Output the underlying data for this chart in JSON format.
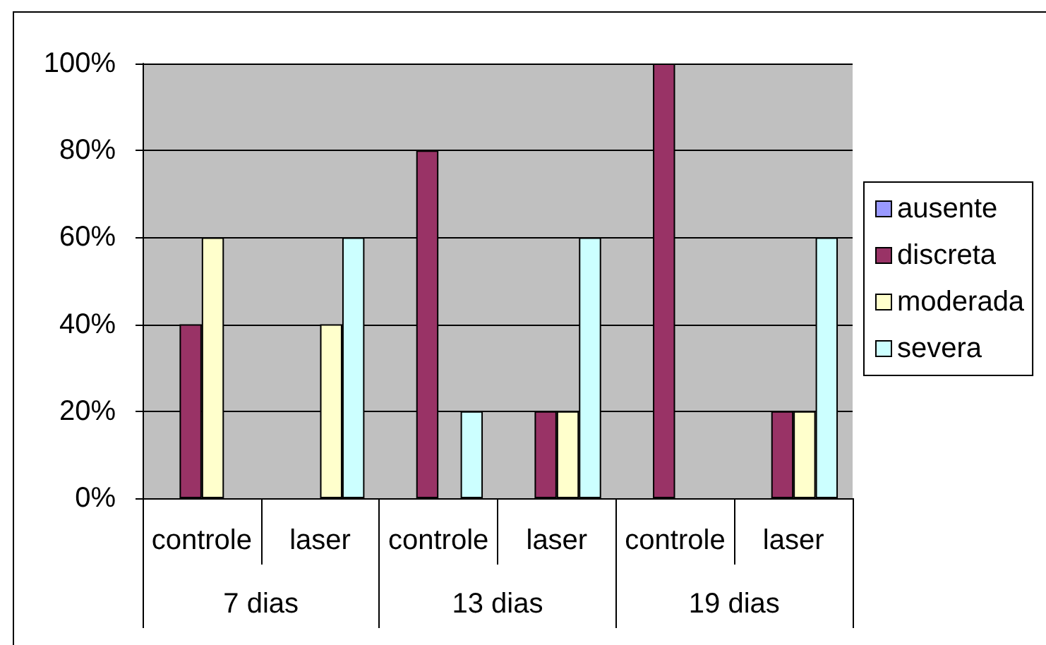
{
  "chart_data": {
    "type": "bar",
    "categories": [
      "controle",
      "laser",
      "controle",
      "laser",
      "controle",
      "laser"
    ],
    "annotations": [
      "7 dias",
      "13 dias",
      "19 dias"
    ],
    "series": [
      {
        "name": "ausente",
        "color": "#9999ff",
        "values": [
          0,
          0,
          0,
          0,
          0,
          0
        ]
      },
      {
        "name": "discreta",
        "color": "#993366",
        "values": [
          40,
          0,
          80,
          20,
          100,
          20
        ]
      },
      {
        "name": "moderada",
        "color": "#ffffcc",
        "values": [
          60,
          40,
          0,
          20,
          0,
          20
        ]
      },
      {
        "name": "severa",
        "color": "#ccffff",
        "values": [
          0,
          60,
          20,
          60,
          0,
          60
        ]
      }
    ],
    "ylim": [
      0,
      100
    ],
    "yticks": [
      {
        "value": 0,
        "label": "0%"
      },
      {
        "value": 20,
        "label": "20%"
      },
      {
        "value": 40,
        "label": "40%"
      },
      {
        "value": 60,
        "label": "60%"
      },
      {
        "value": 80,
        "label": "80%"
      },
      {
        "value": 100,
        "label": "100%"
      }
    ],
    "grid": "y",
    "legend": "right"
  }
}
